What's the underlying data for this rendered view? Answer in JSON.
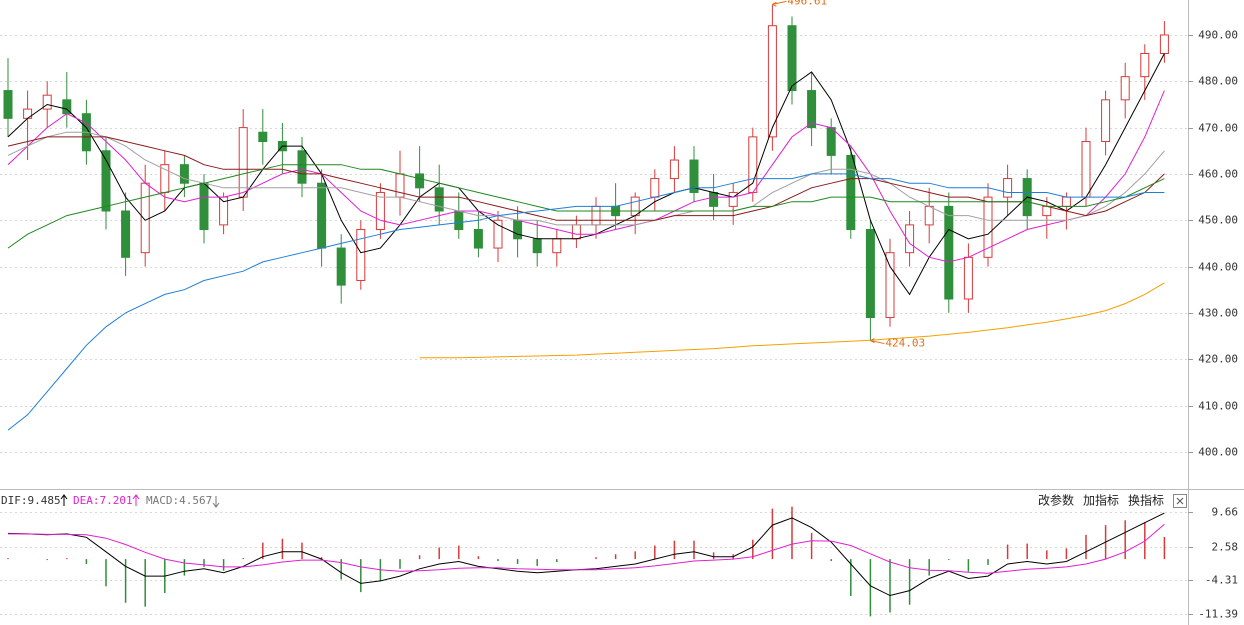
{
  "chart_data": [
    {
      "type": "candlestick",
      "open": [
        478,
        472,
        474,
        476,
        473,
        465,
        452,
        443,
        456,
        462,
        458,
        449,
        455,
        469,
        467,
        465,
        458,
        444,
        437,
        448,
        455,
        460,
        457,
        452,
        448,
        444,
        450,
        446,
        443,
        446,
        449,
        453,
        451,
        455,
        459,
        463,
        456,
        453,
        456,
        468,
        492,
        478,
        470,
        464,
        448,
        429,
        443,
        449,
        453,
        433,
        442,
        455,
        459,
        451,
        453,
        455,
        467,
        476,
        481,
        486
      ],
      "high": [
        485,
        478,
        480,
        482,
        476,
        468,
        456,
        462,
        465,
        464,
        460,
        456,
        474,
        474,
        471,
        468,
        461,
        447,
        450,
        458,
        465,
        466,
        462,
        456,
        452,
        452,
        453,
        450,
        448,
        451,
        455,
        458,
        456,
        461,
        466,
        466,
        460,
        458,
        470,
        496.61,
        494,
        482,
        472,
        466,
        450,
        446,
        452,
        457,
        456,
        445,
        458,
        462,
        461,
        455,
        456,
        470,
        478,
        484,
        488,
        493
      ],
      "low": [
        468,
        463,
        470,
        470,
        462,
        448,
        438,
        440,
        452,
        455,
        445,
        447,
        452,
        462,
        460,
        455,
        440,
        432,
        435,
        446,
        451,
        454,
        449,
        446,
        442,
        441,
        442,
        440,
        440,
        444,
        446,
        448,
        447,
        452,
        456,
        454,
        450,
        449,
        454,
        465,
        475,
        466,
        460,
        446,
        424.03,
        427,
        440,
        445,
        430,
        430,
        440,
        451,
        448,
        446,
        448,
        453,
        464,
        472,
        476,
        484
      ],
      "close": [
        472,
        474,
        477,
        473,
        465,
        452,
        442,
        458,
        462,
        458,
        448,
        455,
        470,
        467,
        465,
        458,
        444,
        436,
        448,
        456,
        460,
        457,
        452,
        448,
        444,
        450,
        446,
        443,
        446,
        449,
        453,
        451,
        455,
        459,
        463,
        456,
        453,
        456,
        468,
        492,
        478,
        470,
        464,
        448,
        429,
        443,
        449,
        453,
        433,
        442,
        455,
        459,
        451,
        453,
        455,
        467,
        476,
        481,
        486,
        490
      ],
      "up_color": "#d83a3a",
      "down_color": "#2f8f3a",
      "series": [
        {
          "color": "#000000",
          "values": [
            468,
            472,
            475,
            474,
            470,
            463,
            455,
            450,
            452,
            457,
            458,
            454,
            455,
            461,
            466,
            466,
            460,
            450,
            443,
            444,
            449,
            455,
            458,
            457,
            452,
            449,
            447,
            446,
            446,
            446,
            447,
            449,
            451,
            454,
            456,
            457,
            456,
            455,
            458,
            470,
            479,
            482,
            476,
            465,
            450,
            440,
            434,
            442,
            448,
            446,
            447,
            451,
            455,
            454,
            452,
            455,
            462,
            470,
            478,
            486
          ]
        },
        {
          "color": "#e020d0",
          "values": [
            462,
            466,
            470,
            473,
            471,
            467,
            463,
            458,
            455,
            454,
            455,
            455,
            456,
            458,
            460,
            461,
            460,
            456,
            452,
            450,
            449,
            450,
            451,
            452,
            452,
            451,
            450,
            449,
            448,
            447,
            447,
            448,
            449,
            450,
            452,
            454,
            455,
            455,
            456,
            462,
            468,
            471,
            470,
            466,
            460,
            452,
            445,
            442,
            441,
            442,
            444,
            446,
            448,
            449,
            450,
            451,
            455,
            460,
            468,
            478
          ]
        },
        {
          "color": "#a0a0a0",
          "values": [
            464,
            466,
            468,
            469,
            469,
            468,
            466,
            463,
            461,
            459,
            458,
            457,
            457,
            457,
            457,
            457,
            457,
            457,
            456,
            455,
            455,
            454,
            453,
            452,
            451,
            451,
            450,
            450,
            449,
            449,
            449,
            449,
            449,
            450,
            451,
            452,
            452,
            452,
            453,
            456,
            458,
            460,
            461,
            461,
            460,
            458,
            455,
            453,
            451,
            451,
            450,
            450,
            450,
            450,
            450,
            451,
            453,
            456,
            460,
            465
          ]
        },
        {
          "color": "#8b1a1a",
          "values": [
            466,
            467,
            468,
            468,
            468,
            468,
            467,
            466,
            465,
            464,
            462,
            461,
            461,
            461,
            461,
            460,
            460,
            459,
            458,
            457,
            456,
            455,
            455,
            455,
            454,
            453,
            452,
            451,
            450,
            450,
            450,
            450,
            450,
            450,
            451,
            451,
            451,
            451,
            452,
            453,
            455,
            457,
            458,
            459,
            459,
            458,
            457,
            456,
            455,
            455,
            454,
            454,
            454,
            453,
            452,
            451,
            452,
            454,
            456,
            460
          ]
        },
        {
          "color": "#1f8a1f",
          "values": [
            444,
            447,
            449,
            451,
            452,
            453,
            454,
            455,
            456,
            457,
            458,
            459,
            460,
            461,
            462,
            462,
            462,
            462,
            461,
            461,
            460,
            459,
            458,
            457,
            456,
            455,
            454,
            453,
            452,
            452,
            452,
            452,
            452,
            452,
            452,
            452,
            452,
            452,
            453,
            453,
            454,
            454,
            455,
            455,
            455,
            454,
            454,
            454,
            454,
            454,
            454,
            454,
            454,
            453,
            453,
            453,
            454,
            455,
            457,
            459
          ]
        },
        {
          "color": "#1e7fd8",
          "values": [
            404.7,
            408,
            413,
            418,
            423,
            427,
            430,
            432,
            434,
            435,
            437,
            438,
            439,
            441,
            442,
            443,
            444,
            445,
            446,
            447,
            448,
            448.5,
            449,
            449.5,
            450,
            451,
            451.5,
            452,
            452.5,
            453,
            453,
            453,
            454,
            455,
            456,
            457,
            457,
            458,
            459,
            459,
            459,
            460,
            460,
            460,
            459,
            459,
            458,
            458,
            457,
            457,
            457,
            456,
            456,
            456,
            455,
            455,
            455,
            455,
            456,
            456
          ]
        },
        {
          "color": "#f5a000",
          "values": [
            null,
            null,
            null,
            null,
            null,
            null,
            null,
            null,
            null,
            null,
            null,
            null,
            null,
            null,
            null,
            null,
            null,
            null,
            null,
            null,
            null,
            420.3,
            420.3,
            420.3,
            420.4,
            420.5,
            420.6,
            420.7,
            420.8,
            420.9,
            421.1,
            421.3,
            421.5,
            421.7,
            421.9,
            422.1,
            422.3,
            422.6,
            422.9,
            423.1,
            423.3,
            423.5,
            423.7,
            423.9,
            424.1,
            424.4,
            424.7,
            425.0,
            425.4,
            425.8,
            426.3,
            426.8,
            427.4,
            428.0,
            428.7,
            429.5,
            430.5,
            432.0,
            434.0,
            436.5
          ]
        }
      ],
      "annotation_color": "#e0701a",
      "ylim": [
        392.2,
        497.55
      ],
      "yticks": [
        {
          "value": 490,
          "label": "490.00"
        },
        {
          "value": 480,
          "label": "480.00"
        },
        {
          "value": 470,
          "label": "470.00"
        },
        {
          "value": 460,
          "label": "460.00"
        },
        {
          "value": 450,
          "label": "450.00"
        },
        {
          "value": 440,
          "label": "440.00"
        },
        {
          "value": 430,
          "label": "430.00"
        },
        {
          "value": 420,
          "label": "420.00"
        },
        {
          "value": 410,
          "label": "410.00"
        },
        {
          "value": 400,
          "label": "400.00"
        }
      ],
      "grid": true
    },
    {
      "type": "macd",
      "legend": [
        "DIF:9.485",
        "DEA:7.201",
        "MACD:4.567"
      ],
      "series": [
        {
          "color": "#000000",
          "values": [
            5.3,
            5.2,
            5.0,
            5.2,
            4.5,
            1.5,
            -1.5,
            -3.5,
            -3.5,
            -2.5,
            -2.0,
            -2.8,
            -1.5,
            0.5,
            1.5,
            1.5,
            0,
            -2.8,
            -5.0,
            -4.5,
            -3.5,
            -2.0,
            -1.0,
            -0.5,
            -1.5,
            -2.0,
            -2.5,
            -2.8,
            -2.5,
            -2.2,
            -2.0,
            -1.5,
            -1.0,
            0,
            1,
            1.5,
            0.5,
            0.5,
            2.5,
            7.0,
            8.5,
            6.5,
            3.5,
            -1.0,
            -5.5,
            -7.5,
            -6.5,
            -4.0,
            -2.5,
            -4.0,
            -3.5,
            -1.0,
            -0.5,
            -1.0,
            -0.5,
            1.5,
            3.5,
            5.5,
            7.5,
            9.485
          ]
        },
        {
          "color": "#e020d0",
          "values": [
            5.2,
            5.2,
            5.1,
            5.1,
            5.0,
            4.3,
            3.0,
            1.4,
            0,
            -0.8,
            -1.2,
            -1.6,
            -1.6,
            -1.2,
            -0.6,
            -0.2,
            -0.2,
            -0.7,
            -1.6,
            -2.2,
            -2.5,
            -2.4,
            -2.2,
            -1.9,
            -1.8,
            -1.8,
            -2.0,
            -2.1,
            -2.2,
            -2.2,
            -2.2,
            -2.0,
            -1.8,
            -1.4,
            -0.9,
            -0.4,
            -0.2,
            0,
            0.5,
            1.8,
            3.1,
            3.8,
            3.7,
            2.8,
            1.1,
            -0.6,
            -1.8,
            -2.3,
            -2.4,
            -2.7,
            -2.9,
            -2.5,
            -2.1,
            -1.9,
            -1.6,
            -1.0,
            0,
            1.5,
            3.7,
            7.201
          ]
        }
      ],
      "histogram": {
        "up_color": "#d83a3a",
        "down_color": "#2f8f3a",
        "values": [
          0.2,
          0,
          -0.2,
          0.2,
          -1.0,
          -5.6,
          -9.0,
          -9.8,
          -7.0,
          -3.4,
          -1.6,
          -2.4,
          0.2,
          3.4,
          4.2,
          3.4,
          0.4,
          -4.2,
          -6.8,
          -4.6,
          -2.0,
          0.8,
          2.4,
          2.8,
          0.6,
          -0.4,
          -1.0,
          -1.4,
          -0.6,
          0,
          0.4,
          1.0,
          1.6,
          2.8,
          3.8,
          3.8,
          1.4,
          1.0,
          4.0,
          10.4,
          10.8,
          5.4,
          -0.4,
          -7.6,
          -11.8,
          -11.0,
          -9.4,
          -3.4,
          -0.2,
          -2.6,
          -1.2,
          3.0,
          3.2,
          1.8,
          2.2,
          5.0,
          7.0,
          8.0,
          7.6,
          4.567
        ]
      },
      "ylim": [
        -13.58,
        14.24
      ],
      "yticks": [
        9.66,
        2.58,
        -4.31,
        -11.39
      ],
      "grid": true
    }
  ],
  "toolbar": {
    "buttons": [
      "改参数",
      "加指标",
      "换指标"
    ]
  }
}
